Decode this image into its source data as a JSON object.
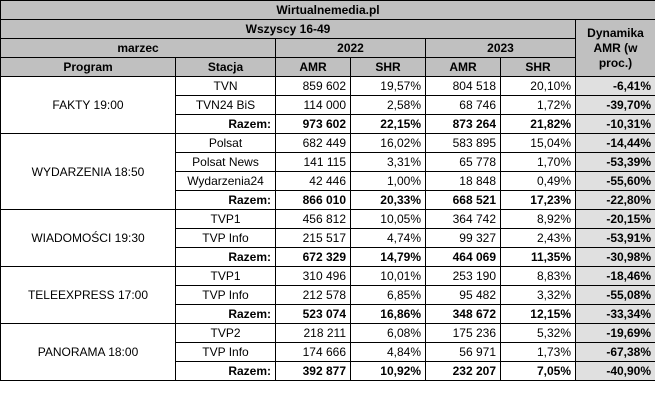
{
  "title": "Wirtualnemedia.pl",
  "subtitle": "Wszyscy 16-49",
  "month": "marzec",
  "dynamics_label": "Dynamika AMR (w proc.)",
  "col_program": "Program",
  "col_station": "Stacja",
  "year1": "2022",
  "year2": "2023",
  "col_amr": "AMR",
  "col_shr": "SHR",
  "groups": [
    {
      "program": "FAKTY 19:00",
      "rows": [
        {
          "station": "TVN",
          "amr22": "859 602",
          "shr22": "19,57%",
          "amr23": "804 518",
          "shr23": "20,10%",
          "dyn": "-6,41%"
        },
        {
          "station": "TVN24 BiS",
          "amr22": "114 000",
          "shr22": "2,58%",
          "amr23": "68 746",
          "shr23": "1,72%",
          "dyn": "-39,70%"
        },
        {
          "station": "Razem:",
          "amr22": "973 602",
          "shr22": "22,15%",
          "amr23": "873 264",
          "shr23": "21,82%",
          "dyn": "-10,31%"
        }
      ]
    },
    {
      "program": "WYDARZENIA 18:50",
      "rows": [
        {
          "station": "Polsat",
          "amr22": "682 449",
          "shr22": "16,02%",
          "amr23": "583 895",
          "shr23": "15,04%",
          "dyn": "-14,44%"
        },
        {
          "station": "Polsat News",
          "amr22": "141 115",
          "shr22": "3,31%",
          "amr23": "65 778",
          "shr23": "1,70%",
          "dyn": "-53,39%"
        },
        {
          "station": "Wydarzenia24",
          "amr22": "42 446",
          "shr22": "1,00%",
          "amr23": "18 848",
          "shr23": "0,49%",
          "dyn": "-55,60%"
        },
        {
          "station": "Razem:",
          "amr22": "866 010",
          "shr22": "20,33%",
          "amr23": "668 521",
          "shr23": "17,23%",
          "dyn": "-22,80%"
        }
      ]
    },
    {
      "program": "WIADOMOŚCI 19:30",
      "rows": [
        {
          "station": "TVP1",
          "amr22": "456 812",
          "shr22": "10,05%",
          "amr23": "364 742",
          "shr23": "8,92%",
          "dyn": "-20,15%"
        },
        {
          "station": "TVP Info",
          "amr22": "215 517",
          "shr22": "4,74%",
          "amr23": "99 327",
          "shr23": "2,43%",
          "dyn": "-53,91%"
        },
        {
          "station": "Razem:",
          "amr22": "672 329",
          "shr22": "14,79%",
          "amr23": "464 069",
          "shr23": "11,35%",
          "dyn": "-30,98%"
        }
      ]
    },
    {
      "program": "TELEEXPRESS 17:00",
      "rows": [
        {
          "station": "TVP1",
          "amr22": "310 496",
          "shr22": "10,01%",
          "amr23": "253 190",
          "shr23": "8,83%",
          "dyn": "-18,46%"
        },
        {
          "station": "TVP Info",
          "amr22": "212 578",
          "shr22": "6,85%",
          "amr23": "95 482",
          "shr23": "3,32%",
          "dyn": "-55,08%"
        },
        {
          "station": "Razem:",
          "amr22": "523 074",
          "shr22": "16,86%",
          "amr23": "348 672",
          "shr23": "12,15%",
          "dyn": "-33,34%"
        }
      ]
    },
    {
      "program": "PANORAMA 18:00",
      "rows": [
        {
          "station": "TVP2",
          "amr22": "218 211",
          "shr22": "6,08%",
          "amr23": "175 236",
          "shr23": "5,32%",
          "dyn": "-19,69%"
        },
        {
          "station": "TVP Info",
          "amr22": "174 666",
          "shr22": "4,84%",
          "amr23": "56 971",
          "shr23": "1,73%",
          "dyn": "-67,38%"
        },
        {
          "station": "Razem:",
          "amr22": "392 877",
          "shr22": "10,92%",
          "amr23": "232 207",
          "shr23": "7,05%",
          "dyn": "-40,90%"
        }
      ]
    }
  ]
}
